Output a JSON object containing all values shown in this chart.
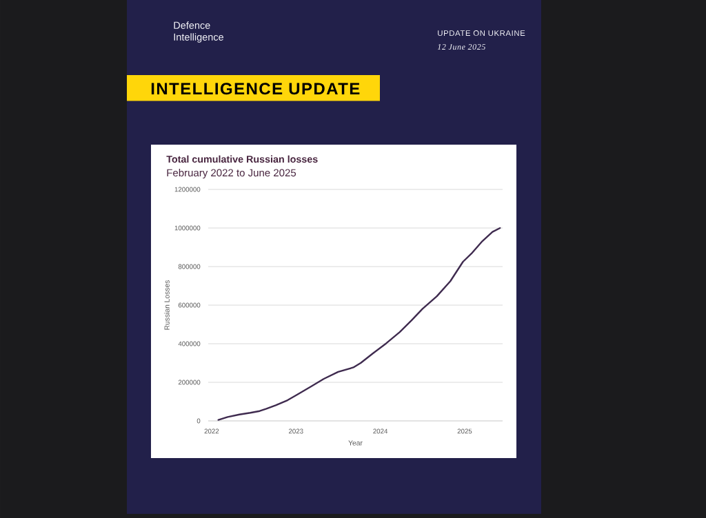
{
  "chart_data": {
    "type": "line",
    "title": "Total cumulative Russian losses",
    "subtitle": "February 2022 to June 2025",
    "xlabel": "Year",
    "ylabel": "Russian Losses",
    "annotations": [
      "Defence Intelligence",
      "UPDATE ON UKRAINE",
      "12 June 2025",
      "INTELLIGENCE UPDATE"
    ],
    "x": [
      2022.08,
      2022.19,
      2022.33,
      2022.46,
      2022.57,
      2022.65,
      2022.76,
      2022.9,
      2023.01,
      2023.17,
      2023.33,
      2023.5,
      2023.68,
      2023.77,
      2023.91,
      2024.07,
      2024.23,
      2024.37,
      2024.5,
      2024.67,
      2024.83,
      2024.98,
      2025.08,
      2025.21,
      2025.33,
      2025.42
    ],
    "series": [
      {
        "color": "#3f2b4f",
        "values": [
          5000,
          20000,
          33000,
          42000,
          51000,
          63000,
          81000,
          107000,
          135000,
          176000,
          218000,
          254000,
          277000,
          301000,
          349000,
          402000,
          460000,
          521000,
          581000,
          646000,
          724000,
          825000,
          867000,
          932000,
          980000,
          1000000
        ]
      }
    ],
    "xlim": [
      2021.96,
      2025.45
    ],
    "ylim": [
      0,
      1200000
    ],
    "xticks": [
      2022,
      2023,
      2024,
      2025
    ],
    "yticks": [
      0,
      200000,
      400000,
      600000,
      800000,
      1000000,
      1200000
    ],
    "grid": "y",
    "marker": "none",
    "line_style": "solid"
  }
}
